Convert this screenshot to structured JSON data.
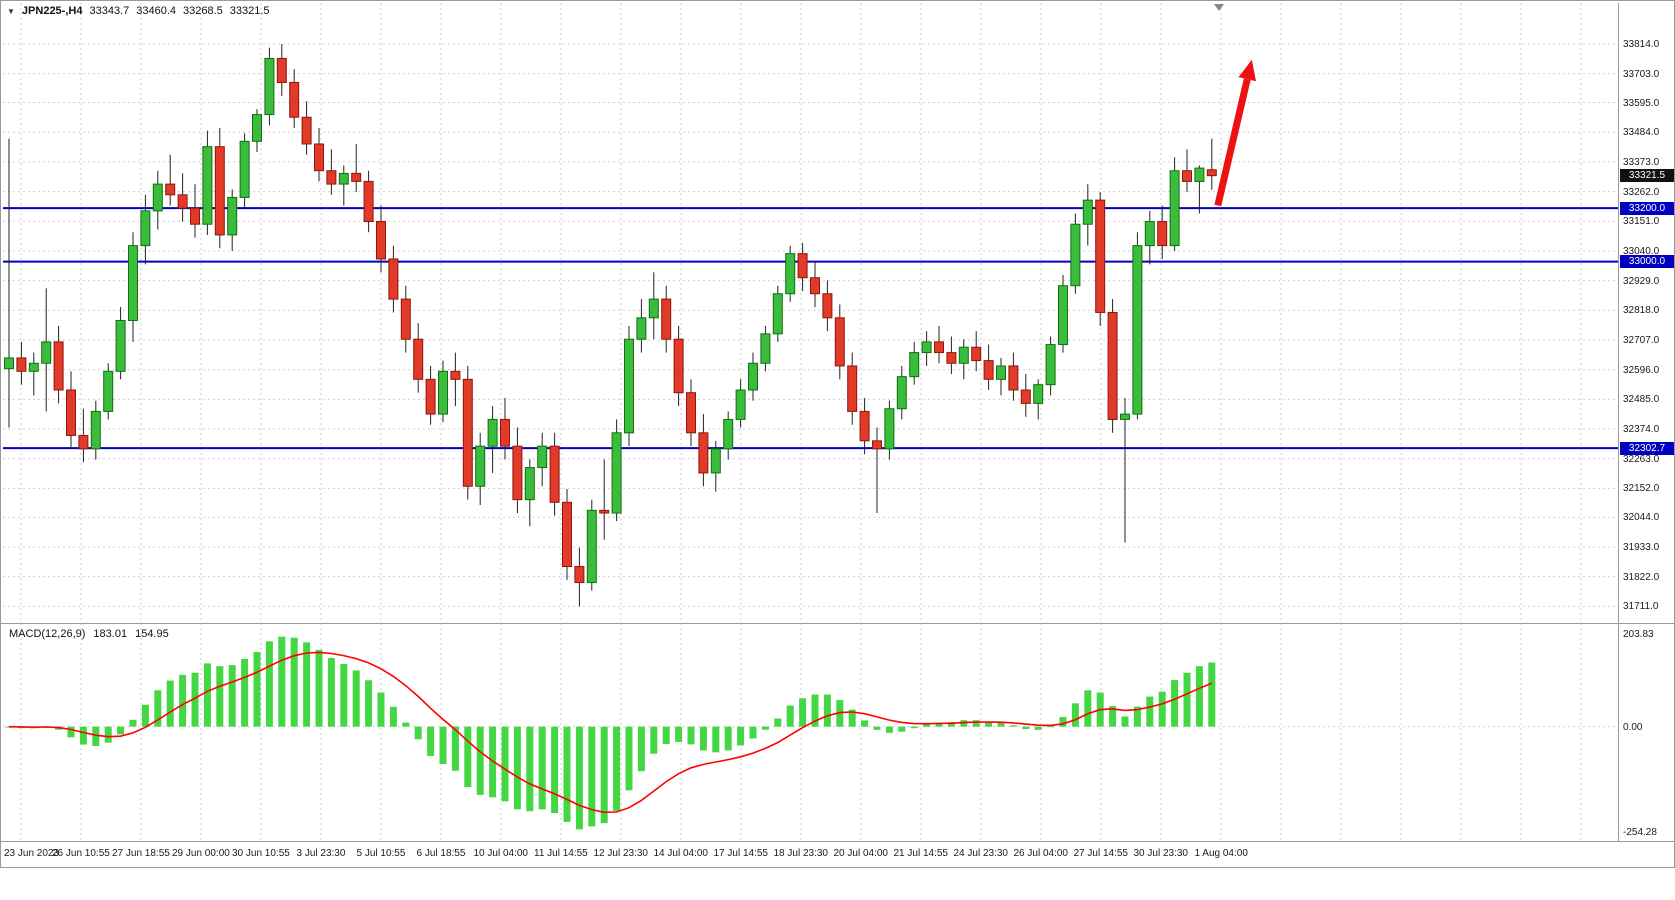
{
  "header": {
    "menu_icon": "▼",
    "symbol_period": "JPN225-,H4",
    "open": "33343.7",
    "high": "33460.4",
    "low": "33268.5",
    "close": "33321.5"
  },
  "macd": {
    "label": "MACD(12,26,9)",
    "value_main": "183.01",
    "value_signal": "154.95",
    "axis_max_label": "203.83",
    "axis_zero_label": "0.00",
    "axis_min_label": "-254.28"
  },
  "colors": {
    "grid": "#cfcfcf",
    "wick": "#222222",
    "bull": "#3cbc3c",
    "bull_border": "#0e720e",
    "bear": "#e23a28",
    "bear_border": "#93150b",
    "level": "#0000c0",
    "current_tag_bg": "#111111",
    "macd_hist": "#44d744",
    "macd_signal": "#ff0000",
    "arrow": "#ee1111",
    "separator": "#9a9a9a",
    "shift_marker": "#888888"
  },
  "chart_data": {
    "type": "candlestick",
    "symbol": "JPN225-",
    "timeframe": "H4",
    "ylim": [
      31660,
      33870
    ],
    "price_ticks": [
      {
        "value": 33814,
        "label": "33814.0"
      },
      {
        "value": 33703,
        "label": "33703.0"
      },
      {
        "value": 33595,
        "label": "33595.0"
      },
      {
        "value": 33484,
        "label": "33484.0"
      },
      {
        "value": 33373,
        "label": "33373.0"
      },
      {
        "value": 33262,
        "label": "33262.0"
      },
      {
        "value": 33151,
        "label": "33151.0"
      },
      {
        "value": 33040,
        "label": "33040.0"
      },
      {
        "value": 32929,
        "label": "32929.0"
      },
      {
        "value": 32818,
        "label": "32818.0"
      },
      {
        "value": 32707,
        "label": "32707.0"
      },
      {
        "value": 32596,
        "label": "32596.0"
      },
      {
        "value": 32485,
        "label": "32485.0"
      },
      {
        "value": 32374,
        "label": "32374.0"
      },
      {
        "value": 32263,
        "label": "32263.0"
      },
      {
        "value": 32152,
        "label": "32152.0"
      },
      {
        "value": 32044,
        "label": "32044.0"
      },
      {
        "value": 31933,
        "label": "31933.0"
      },
      {
        "value": 31822,
        "label": "31822.0"
      },
      {
        "value": 31711,
        "label": "31711.0"
      }
    ],
    "time_ticks": [
      "23 Jun 2023",
      "26 Jun 10:55",
      "27 Jun 18:55",
      "29 Jun 00:00",
      "30 Jun 10:55",
      "3 Jul 23:30",
      "5 Jul 10:55",
      "6 Jul 18:55",
      "10 Jul 04:00",
      "11 Jul 14:55",
      "12 Jul 23:30",
      "14 Jul 04:00",
      "17 Jul 14:55",
      "18 Jul 23:30",
      "20 Jul 04:00",
      "21 Jul 14:55",
      "24 Jul 23:30",
      "26 Jul 04:00",
      "27 Jul 14:55",
      "30 Jul 23:30",
      "1 Aug 04:00"
    ],
    "horizontal_levels": [
      {
        "price": 33200.0,
        "label": "33200.0"
      },
      {
        "price": 33000.0,
        "label": "33000.0"
      },
      {
        "price": 32302.7,
        "label": "32302.7"
      }
    ],
    "current_price": {
      "price": 33321.5,
      "label": "33321.5"
    },
    "indicator": {
      "type": "MACD",
      "fast": 12,
      "slow": 26,
      "signal": 9,
      "main_value": 183.01,
      "signal_value": 154.95,
      "axis_labels": [
        203.83,
        0.0,
        -254.28
      ]
    },
    "annotations": [
      {
        "type": "arrow-up",
        "price_from": 33210,
        "price_to": 33755,
        "color": "#ee1111"
      }
    ],
    "candles": [
      [
        32600,
        33460,
        32380,
        32640
      ],
      [
        32640,
        32700,
        32540,
        32590
      ],
      [
        32590,
        32660,
        32500,
        32620
      ],
      [
        32620,
        32900,
        32440,
        32700
      ],
      [
        32700,
        32760,
        32470,
        32520
      ],
      [
        32520,
        32590,
        32300,
        32350
      ],
      [
        32350,
        32450,
        32250,
        32300
      ],
      [
        32300,
        32480,
        32260,
        32440
      ],
      [
        32440,
        32620,
        32410,
        32590
      ],
      [
        32590,
        32830,
        32560,
        32780
      ],
      [
        32780,
        33110,
        32700,
        33060
      ],
      [
        33060,
        33250,
        32990,
        33190
      ],
      [
        33190,
        33340,
        33120,
        33290
      ],
      [
        33290,
        33400,
        33210,
        33250
      ],
      [
        33250,
        33330,
        33150,
        33200
      ],
      [
        33200,
        33290,
        33090,
        33140
      ],
      [
        33140,
        33490,
        33100,
        33430
      ],
      [
        33430,
        33500,
        33050,
        33100
      ],
      [
        33100,
        33270,
        33040,
        33240
      ],
      [
        33240,
        33480,
        33200,
        33450
      ],
      [
        33450,
        33570,
        33410,
        33550
      ],
      [
        33550,
        33800,
        33510,
        33760
      ],
      [
        33760,
        33814,
        33620,
        33670
      ],
      [
        33670,
        33720,
        33500,
        33540
      ],
      [
        33540,
        33600,
        33400,
        33440
      ],
      [
        33440,
        33500,
        33300,
        33340
      ],
      [
        33340,
        33420,
        33250,
        33290
      ],
      [
        33290,
        33360,
        33210,
        33330
      ],
      [
        33330,
        33440,
        33260,
        33300
      ],
      [
        33300,
        33340,
        33110,
        33150
      ],
      [
        33150,
        33210,
        32960,
        33010
      ],
      [
        33010,
        33060,
        32810,
        32860
      ],
      [
        32860,
        32910,
        32660,
        32710
      ],
      [
        32710,
        32770,
        32510,
        32560
      ],
      [
        32560,
        32610,
        32390,
        32430
      ],
      [
        32430,
        32630,
        32400,
        32590
      ],
      [
        32590,
        32660,
        32460,
        32560
      ],
      [
        32560,
        32610,
        32110,
        32160
      ],
      [
        32160,
        32360,
        32090,
        32310
      ],
      [
        32310,
        32460,
        32210,
        32410
      ],
      [
        32410,
        32490,
        32260,
        32310
      ],
      [
        32310,
        32380,
        32060,
        32110
      ],
      [
        32110,
        32260,
        32010,
        32230
      ],
      [
        32230,
        32360,
        32160,
        32310
      ],
      [
        32310,
        32360,
        32050,
        32100
      ],
      [
        32100,
        32150,
        31810,
        31860
      ],
      [
        31860,
        31930,
        31711,
        31800
      ],
      [
        31800,
        32110,
        31770,
        32070
      ],
      [
        32070,
        32260,
        31960,
        32060
      ],
      [
        32060,
        32410,
        32030,
        32360
      ],
      [
        32360,
        32760,
        32310,
        32710
      ],
      [
        32710,
        32860,
        32660,
        32790
      ],
      [
        32790,
        32960,
        32710,
        32860
      ],
      [
        32860,
        32910,
        32660,
        32710
      ],
      [
        32710,
        32760,
        32460,
        32510
      ],
      [
        32510,
        32560,
        32310,
        32360
      ],
      [
        32360,
        32430,
        32160,
        32210
      ],
      [
        32210,
        32330,
        32140,
        32300
      ],
      [
        32300,
        32440,
        32260,
        32410
      ],
      [
        32410,
        32560,
        32380,
        32520
      ],
      [
        32520,
        32660,
        32480,
        32620
      ],
      [
        32620,
        32760,
        32590,
        32730
      ],
      [
        32730,
        32910,
        32700,
        32880
      ],
      [
        32880,
        33060,
        32850,
        33030
      ],
      [
        33030,
        33070,
        32890,
        32940
      ],
      [
        32940,
        33000,
        32830,
        32880
      ],
      [
        32880,
        32930,
        32740,
        32790
      ],
      [
        32790,
        32840,
        32560,
        32610
      ],
      [
        32610,
        32660,
        32390,
        32440
      ],
      [
        32440,
        32490,
        32280,
        32330
      ],
      [
        32330,
        32380,
        32060,
        32300
      ],
      [
        32300,
        32480,
        32260,
        32450
      ],
      [
        32450,
        32610,
        32410,
        32570
      ],
      [
        32570,
        32700,
        32540,
        32660
      ],
      [
        32660,
        32740,
        32610,
        32700
      ],
      [
        32700,
        32760,
        32620,
        32660
      ],
      [
        32660,
        32720,
        32580,
        32620
      ],
      [
        32620,
        32710,
        32560,
        32680
      ],
      [
        32680,
        32740,
        32590,
        32630
      ],
      [
        32630,
        32690,
        32520,
        32560
      ],
      [
        32560,
        32640,
        32500,
        32610
      ],
      [
        32610,
        32660,
        32480,
        32520
      ],
      [
        32520,
        32580,
        32420,
        32470
      ],
      [
        32470,
        32560,
        32410,
        32540
      ],
      [
        32540,
        32720,
        32500,
        32690
      ],
      [
        32690,
        32950,
        32660,
        32910
      ],
      [
        32910,
        33180,
        32880,
        33140
      ],
      [
        33140,
        33290,
        33060,
        33230
      ],
      [
        33230,
        33260,
        32760,
        32810
      ],
      [
        32810,
        32860,
        32360,
        32410
      ],
      [
        32410,
        32490,
        31950,
        32430
      ],
      [
        32430,
        33110,
        32410,
        33060
      ],
      [
        33060,
        33190,
        32990,
        33150
      ],
      [
        33150,
        33210,
        33010,
        33060
      ],
      [
        33060,
        33390,
        33040,
        33340
      ],
      [
        33340,
        33420,
        33260,
        33300
      ],
      [
        33300,
        33360,
        33180,
        33350
      ],
      [
        33343.7,
        33460.4,
        33268.5,
        33321.5
      ]
    ]
  }
}
